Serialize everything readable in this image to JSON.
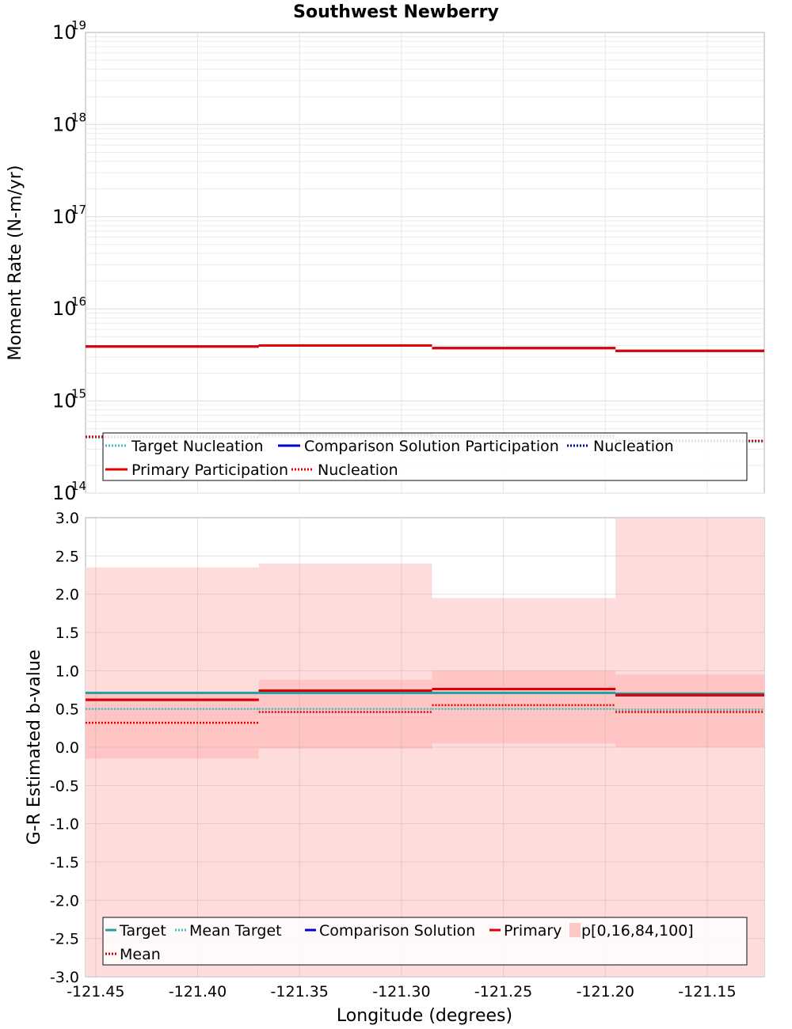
{
  "title": "Southwest Newberry",
  "xlabel": "Longitude (degrees)",
  "chart_data": [
    {
      "type": "line",
      "panel": "top",
      "ylabel": "Moment Rate (N-m/yr)",
      "yscale": "log",
      "ylim": [
        100000000000000.0,
        1e+19
      ],
      "xlim": [
        -121.455,
        -121.122
      ],
      "ytick_exponents": [
        "14",
        "15",
        "16",
        "17",
        "18",
        "19"
      ],
      "grid": true,
      "legend_position": "bottom",
      "x_edges": [
        -121.455,
        -121.37,
        -121.285,
        -121.195,
        -121.122
      ],
      "series": [
        {
          "name": "Target Nucleation",
          "style": "dotted",
          "color": "#40c0c0",
          "values": [
            400000000000000.0,
            410000000000000.0,
            400000000000000.0,
            360000000000000.0
          ]
        },
        {
          "name": "Comparison Solution Participation",
          "style": "solid",
          "color": "#0000cc",
          "values": [
            3900000000000000.0,
            4000000000000000.0,
            3750000000000000.0,
            3500000000000000.0
          ]
        },
        {
          "name": "Nucleation",
          "style": "dotted",
          "color": "#00008b",
          "values": [
            410000000000000.0,
            430000000000000.0,
            420000000000000.0,
            370000000000000.0
          ]
        },
        {
          "name": "Primary Participation",
          "style": "solid",
          "color": "#e00000",
          "values": [
            3900000000000000.0,
            4000000000000000.0,
            3750000000000000.0,
            3500000000000000.0
          ]
        },
        {
          "name": "Nucleation",
          "style": "dotted",
          "color": "#e00000",
          "values": [
            410000000000000.0,
            430000000000000.0,
            420000000000000.0,
            370000000000000.0
          ]
        }
      ],
      "legend": [
        {
          "label": "Target Nucleation",
          "style": "dotted",
          "color": "#40c0c0"
        },
        {
          "label": "Comparison Solution Participation",
          "style": "solid",
          "color": "#0000cc"
        },
        {
          "label": "Nucleation",
          "style": "dotted",
          "color": "#00008b"
        },
        {
          "label": "Primary Participation",
          "style": "solid",
          "color": "#e00000"
        },
        {
          "label": "Nucleation",
          "style": "dotted",
          "color": "#e00000"
        }
      ]
    },
    {
      "type": "line",
      "panel": "bottom",
      "ylabel": "G-R Estimated b-value",
      "ylim": [
        -3.0,
        3.0
      ],
      "xlim": [
        -121.455,
        -121.122
      ],
      "xticks": [
        "-121.45",
        "-121.40",
        "-121.35",
        "-121.30",
        "-121.25",
        "-121.20",
        "-121.15"
      ],
      "yticks": [
        "-3.0",
        "-2.5",
        "-2.0",
        "-1.5",
        "-1.0",
        "-0.5",
        "0.0",
        "0.5",
        "1.0",
        "1.5",
        "2.0",
        "2.5",
        "3.0"
      ],
      "grid": true,
      "legend_position": "bottom",
      "x_edges": [
        -121.455,
        -121.37,
        -121.285,
        -121.195,
        -121.122
      ],
      "bands": {
        "name": "p[0,16,84,100]",
        "p0": [
          -3.0,
          -3.0,
          -3.0,
          -3.0
        ],
        "p16": [
          -0.15,
          -0.02,
          0.05,
          0.0
        ],
        "p84": [
          0.72,
          0.88,
          1.0,
          0.95
        ],
        "p100": [
          2.35,
          2.4,
          1.95,
          3.0
        ]
      },
      "series": [
        {
          "name": "Target",
          "style": "solid",
          "color": "#20a0a0",
          "values": [
            0.71,
            0.71,
            0.71,
            0.7
          ]
        },
        {
          "name": "Mean Target",
          "style": "dotted",
          "color": "#40c0c0",
          "values": [
            0.5,
            0.5,
            0.5,
            0.49
          ]
        },
        {
          "name": "Comparison Solution",
          "style": "solid",
          "color": "#0000cc",
          "values": [
            0.62,
            0.74,
            0.76,
            0.68
          ]
        },
        {
          "name": "Primary",
          "style": "solid",
          "color": "#e00000",
          "values": [
            0.62,
            0.74,
            0.76,
            0.68
          ]
        },
        {
          "name": "Mean",
          "style": "dotted",
          "color": "#e00000",
          "values": [
            0.32,
            0.46,
            0.55,
            0.46
          ]
        }
      ],
      "legend": [
        {
          "label": "Target",
          "style": "solid",
          "color": "#20a0a0"
        },
        {
          "label": "Mean Target",
          "style": "dotted",
          "color": "#40c0c0"
        },
        {
          "label": "Comparison Solution",
          "style": "solid",
          "color": "#0000cc"
        },
        {
          "label": "Primary",
          "style": "solid",
          "color": "#e00000"
        },
        {
          "label": "p[0,16,84,100]",
          "style": "box",
          "color": "#ffc8c8"
        },
        {
          "label": "Mean",
          "style": "dotted",
          "color": "#e00000"
        }
      ]
    }
  ]
}
